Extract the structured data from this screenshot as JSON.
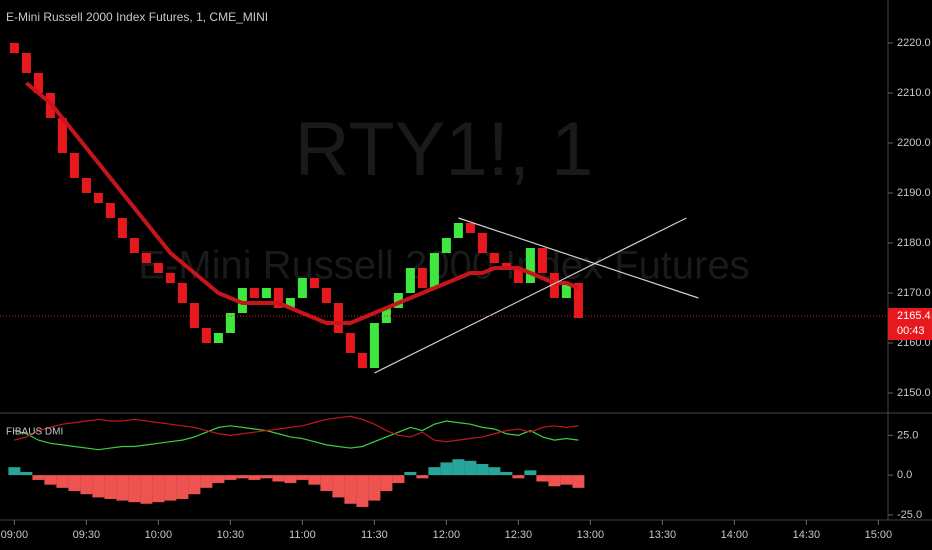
{
  "chart_data": [
    {
      "type": "candlestick",
      "title": "E-Mini Russell 2000 Index Futures, 1, CME_MINI",
      "watermark": [
        "RTY1!, 1",
        "E-Mini Russell 2000 Index Futures"
      ],
      "x": [
        "09:00",
        "09:05",
        "09:10",
        "09:15",
        "09:20",
        "09:25",
        "09:30",
        "09:35",
        "09:40",
        "09:45",
        "09:50",
        "09:55",
        "10:00",
        "10:05",
        "10:10",
        "10:15",
        "10:20",
        "10:25",
        "10:30",
        "10:35",
        "10:40",
        "10:45",
        "10:50",
        "10:55",
        "11:00",
        "11:05",
        "11:10",
        "11:15",
        "11:20",
        "11:25",
        "11:30",
        "11:35",
        "11:40",
        "11:45",
        "11:50",
        "11:55",
        "12:00",
        "12:05",
        "12:10",
        "12:15",
        "12:20",
        "12:25",
        "12:30",
        "12:35",
        "12:40",
        "12:45",
        "12:50",
        "12:55"
      ],
      "open": [
        2220,
        2218,
        2214,
        2210,
        2205,
        2198,
        2193,
        2190,
        2188,
        2185,
        2181,
        2178,
        2176,
        2174,
        2172,
        2168,
        2163,
        2160,
        2162,
        2166,
        2171,
        2169,
        2171,
        2167,
        2169,
        2173,
        2171,
        2168,
        2162,
        2158,
        2155,
        2164,
        2167,
        2170,
        2175,
        2171,
        2178,
        2181,
        2184,
        2182,
        2178,
        2176,
        2175,
        2172,
        2179,
        2174,
        2169,
        2172
      ],
      "close": [
        2218,
        2214,
        2210,
        2205,
        2198,
        2193,
        2190,
        2188,
        2185,
        2181,
        2178,
        2176,
        2174,
        2172,
        2168,
        2163,
        2160,
        2162,
        2166,
        2171,
        2169,
        2171,
        2167,
        2169,
        2173,
        2171,
        2168,
        2162,
        2158,
        2155,
        2164,
        2167,
        2170,
        2175,
        2171,
        2178,
        2181,
        2184,
        2182,
        2178,
        2176,
        2175,
        2172,
        2179,
        2174,
        2169,
        2172,
        2165
      ],
      "up_color": "#3ee83e",
      "down_color": "#e8191e",
      "ma": {
        "color": "#c8141b",
        "values": [
          null,
          2212,
          2210,
          2208,
          2205,
          2202,
          2199,
          2196,
          2193,
          2190,
          2187,
          2184,
          2181,
          2178,
          2176,
          2174,
          2172,
          2170,
          2169,
          2168,
          2168,
          2168,
          2168,
          2167,
          2166,
          2165,
          2164,
          2164,
          2164,
          2165,
          2166,
          2167,
          2168,
          2169,
          2170,
          2171,
          2172,
          2173,
          2174,
          2174,
          2175,
          2175,
          2175,
          2174,
          2173,
          2172,
          2172,
          2171
        ]
      },
      "trendlines": [
        {
          "x": [
            "11:30",
            "13:40"
          ],
          "y": [
            2154,
            2185
          ]
        },
        {
          "x": [
            "12:05",
            "13:45"
          ],
          "y": [
            2185,
            2169
          ]
        }
      ],
      "trendline_color": "#d0d0d0",
      "last_price": 2165.4,
      "countdown": "00:43",
      "last_color": "#e8191e",
      "xlim": [
        "08:54",
        "15:04"
      ],
      "xticks": [
        "09:00",
        "09:30",
        "10:00",
        "10:30",
        "11:00",
        "11:30",
        "12:00",
        "12:30",
        "13:00",
        "13:30",
        "14:00",
        "14:30",
        "15:00"
      ],
      "ylim": [
        2146.6,
        2228.6
      ],
      "yticks": [
        {
          "value": 2150,
          "label": "2150.0"
        },
        {
          "value": 2160,
          "label": "2160.0"
        },
        {
          "value": 2170,
          "label": "2170.0"
        },
        {
          "value": 2180,
          "label": "2180.0"
        },
        {
          "value": 2190,
          "label": "2190.0"
        },
        {
          "value": 2200,
          "label": "2200.0"
        },
        {
          "value": 2210,
          "label": "2210.0"
        },
        {
          "value": 2220,
          "label": "2220.0"
        }
      ]
    },
    {
      "type": "dmi",
      "title": "FIBAUS DMI",
      "histogram": [
        5,
        2,
        -3,
        -6,
        -8,
        -10,
        -12,
        -14,
        -15,
        -16,
        -17,
        -18,
        -17,
        -16,
        -15,
        -12,
        -8,
        -5,
        -3,
        -2,
        -3,
        -2,
        -4,
        -5,
        -3,
        -6,
        -10,
        -14,
        -18,
        -20,
        -16,
        -10,
        -5,
        2,
        -2,
        5,
        8,
        10,
        9,
        7,
        5,
        2,
        -2,
        3,
        -4,
        -7,
        -6,
        -8
      ],
      "pos_color": "#26a69a",
      "neg_color": "#ef5350",
      "series": [
        {
          "color": "#3ecf3e",
          "values": [
            28,
            26,
            22,
            20,
            19,
            18,
            17,
            16,
            17,
            18,
            18,
            19,
            20,
            21,
            22,
            24,
            27,
            30,
            31,
            30,
            29,
            28,
            26,
            24,
            23,
            21,
            19,
            18,
            17,
            18,
            21,
            24,
            27,
            30,
            28,
            32,
            34,
            33,
            32,
            30,
            29,
            26,
            25,
            28,
            24,
            22,
            23,
            22
          ]
        },
        {
          "color": "#c0181c",
          "values": [
            22,
            24,
            28,
            30,
            32,
            33,
            34,
            35,
            34,
            34,
            35,
            34,
            33,
            32,
            31,
            30,
            28,
            26,
            25,
            26,
            27,
            28,
            29,
            30,
            31,
            33,
            35,
            36,
            37,
            35,
            32,
            28,
            25,
            24,
            27,
            22,
            21,
            22,
            23,
            24,
            26,
            28,
            29,
            27,
            30,
            31,
            30,
            31
          ]
        }
      ],
      "ylim": [
        -28.2,
        35.9
      ],
      "yticks": [
        {
          "value": -25,
          "label": "-25.0"
        },
        {
          "value": 0,
          "label": "0.0"
        },
        {
          "value": 25,
          "label": "25.0"
        }
      ]
    }
  ]
}
